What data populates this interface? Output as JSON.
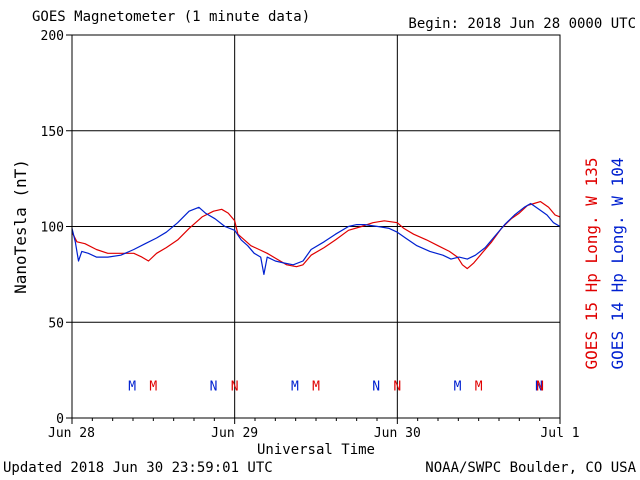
{
  "header": {
    "title": "GOES Magnetometer (1 minute data)",
    "begin": "Begin:  2018 Jun 28 0000 UTC"
  },
  "footer": {
    "updated": "Updated 2018 Jun 30 23:59:01 UTC",
    "credit": "NOAA/SWPC Boulder, CO USA"
  },
  "colors": {
    "goes15": "#e00000",
    "goes14": "#0020d0",
    "frame": "#000000"
  },
  "chart_data": {
    "type": "line",
    "xlabel": "Universal Time",
    "ylabel": "NanoTesla (nT)",
    "x_unit": "days since 2018 Jun 28 0000 UTC",
    "xlim": [
      0,
      3
    ],
    "ylim": [
      0,
      200
    ],
    "y_ticks": [
      0,
      50,
      100,
      150,
      200
    ],
    "x_ticks": [
      {
        "x": 0,
        "label": "Jun 28"
      },
      {
        "x": 1,
        "label": "Jun 29"
      },
      {
        "x": 2,
        "label": "Jun 30"
      },
      {
        "x": 3,
        "label": "Jul 1"
      }
    ],
    "grid": true,
    "series": [
      {
        "name": "GOES 15 Hp  Long. W 135",
        "color": "#e00000",
        "points": [
          [
            0.0,
            97
          ],
          [
            0.03,
            92
          ],
          [
            0.08,
            91
          ],
          [
            0.15,
            88
          ],
          [
            0.22,
            86
          ],
          [
            0.3,
            86
          ],
          [
            0.38,
            86
          ],
          [
            0.43,
            84
          ],
          [
            0.47,
            82
          ],
          [
            0.52,
            86
          ],
          [
            0.58,
            89
          ],
          [
            0.65,
            93
          ],
          [
            0.72,
            99
          ],
          [
            0.8,
            105
          ],
          [
            0.87,
            108
          ],
          [
            0.92,
            109
          ],
          [
            0.96,
            107
          ],
          [
            1.0,
            103
          ],
          [
            1.02,
            96
          ],
          [
            1.06,
            93
          ],
          [
            1.1,
            90
          ],
          [
            1.15,
            88
          ],
          [
            1.2,
            86
          ],
          [
            1.26,
            83
          ],
          [
            1.32,
            80
          ],
          [
            1.38,
            79
          ],
          [
            1.42,
            80
          ],
          [
            1.47,
            85
          ],
          [
            1.55,
            89
          ],
          [
            1.62,
            93
          ],
          [
            1.7,
            98
          ],
          [
            1.78,
            100
          ],
          [
            1.85,
            102
          ],
          [
            1.92,
            103
          ],
          [
            2.0,
            102
          ],
          [
            2.04,
            99
          ],
          [
            2.1,
            96
          ],
          [
            2.18,
            93
          ],
          [
            2.25,
            90
          ],
          [
            2.32,
            87
          ],
          [
            2.37,
            84
          ],
          [
            2.4,
            80
          ],
          [
            2.43,
            78
          ],
          [
            2.47,
            81
          ],
          [
            2.52,
            86
          ],
          [
            2.58,
            92
          ],
          [
            2.64,
            99
          ],
          [
            2.7,
            104
          ],
          [
            2.75,
            107
          ],
          [
            2.8,
            111
          ],
          [
            2.84,
            112
          ],
          [
            2.88,
            113
          ],
          [
            2.93,
            110
          ],
          [
            2.97,
            106
          ],
          [
            3.0,
            105
          ]
        ]
      },
      {
        "name": "GOES 14 Hp  Long. W 104",
        "color": "#0020d0",
        "points": [
          [
            0.0,
            99
          ],
          [
            0.02,
            92
          ],
          [
            0.04,
            82
          ],
          [
            0.06,
            87
          ],
          [
            0.1,
            86
          ],
          [
            0.15,
            84
          ],
          [
            0.22,
            84
          ],
          [
            0.3,
            85
          ],
          [
            0.38,
            88
          ],
          [
            0.45,
            91
          ],
          [
            0.52,
            94
          ],
          [
            0.58,
            97
          ],
          [
            0.65,
            102
          ],
          [
            0.72,
            108
          ],
          [
            0.78,
            110
          ],
          [
            0.82,
            107
          ],
          [
            0.88,
            104
          ],
          [
            0.94,
            100
          ],
          [
            1.0,
            98
          ],
          [
            1.04,
            93
          ],
          [
            1.08,
            90
          ],
          [
            1.12,
            86
          ],
          [
            1.16,
            84
          ],
          [
            1.18,
            75
          ],
          [
            1.2,
            84
          ],
          [
            1.25,
            82
          ],
          [
            1.3,
            81
          ],
          [
            1.36,
            80
          ],
          [
            1.42,
            82
          ],
          [
            1.47,
            88
          ],
          [
            1.55,
            92
          ],
          [
            1.62,
            96
          ],
          [
            1.7,
            100
          ],
          [
            1.75,
            101
          ],
          [
            1.8,
            101
          ],
          [
            1.88,
            100
          ],
          [
            1.95,
            99
          ],
          [
            2.0,
            97
          ],
          [
            2.05,
            94
          ],
          [
            2.12,
            90
          ],
          [
            2.2,
            87
          ],
          [
            2.28,
            85
          ],
          [
            2.33,
            83
          ],
          [
            2.38,
            84
          ],
          [
            2.43,
            83
          ],
          [
            2.48,
            85
          ],
          [
            2.54,
            89
          ],
          [
            2.6,
            95
          ],
          [
            2.66,
            101
          ],
          [
            2.72,
            106
          ],
          [
            2.78,
            110
          ],
          [
            2.82,
            112
          ],
          [
            2.87,
            109
          ],
          [
            2.92,
            106
          ],
          [
            2.96,
            102
          ],
          [
            3.0,
            100
          ]
        ]
      }
    ],
    "markers": [
      {
        "label": "M",
        "x": 0.37,
        "series": "goes14"
      },
      {
        "label": "M",
        "x": 0.5,
        "series": "goes15"
      },
      {
        "label": "N",
        "x": 0.87,
        "series": "goes14"
      },
      {
        "label": "N",
        "x": 1.0,
        "series": "goes15"
      },
      {
        "label": "M",
        "x": 1.37,
        "series": "goes14"
      },
      {
        "label": "M",
        "x": 1.5,
        "series": "goes15"
      },
      {
        "label": "N",
        "x": 1.87,
        "series": "goes14"
      },
      {
        "label": "N",
        "x": 2.0,
        "series": "goes15"
      },
      {
        "label": "M",
        "x": 2.37,
        "series": "goes14"
      },
      {
        "label": "M",
        "x": 2.5,
        "series": "goes15"
      },
      {
        "label": "N",
        "x": 2.87,
        "series": "goes14"
      },
      {
        "label": "N",
        "x": 3.0,
        "series": "goes15"
      }
    ],
    "marker_y": 17
  }
}
